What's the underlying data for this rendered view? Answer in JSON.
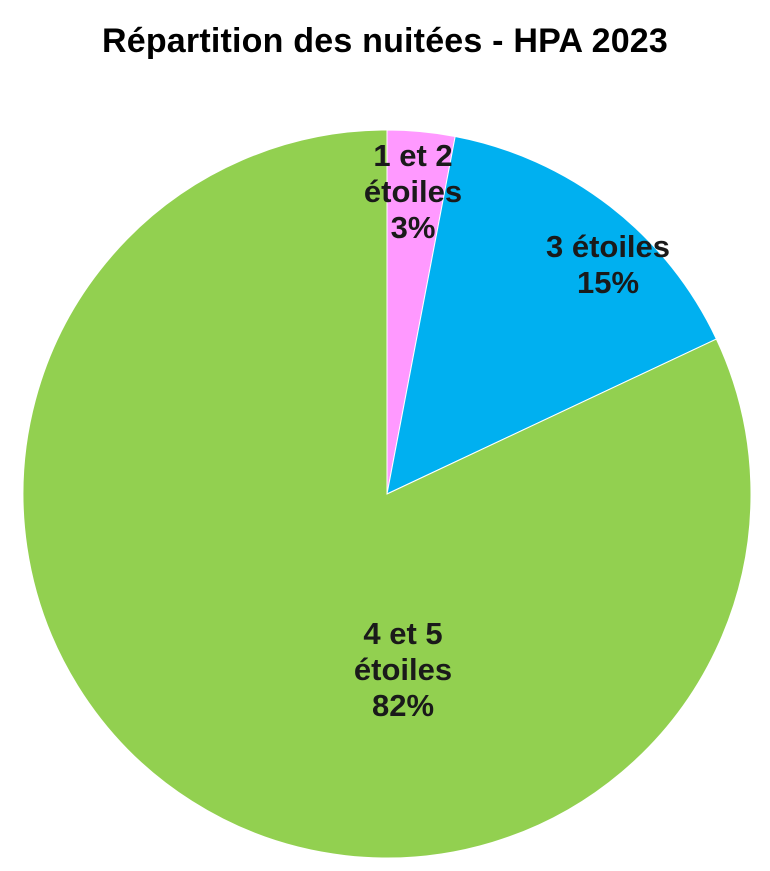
{
  "chart_data": {
    "type": "pie",
    "title": "Répartition des nuitées - HPA 2023",
    "slices": [
      {
        "label_lines": [
          "1 et 2",
          "étoiles",
          "3%"
        ],
        "category": "1 et 2 étoiles",
        "value": 3,
        "color": "#FF99FF"
      },
      {
        "label_lines": [
          "3 étoiles",
          "15%"
        ],
        "category": "3 étoiles",
        "value": 15,
        "color": "#00B0F0"
      },
      {
        "label_lines": [
          "4 et 5",
          "étoiles",
          "82%"
        ],
        "category": "4 et 5 étoiles",
        "value": 82,
        "color": "#92D050"
      }
    ],
    "start_angle_deg": 0,
    "direction": "clockwise",
    "legend": "none"
  }
}
